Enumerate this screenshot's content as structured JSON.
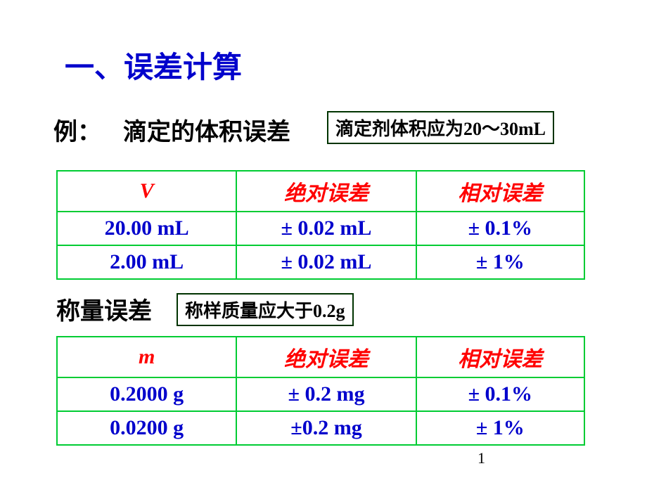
{
  "title": "一、误差计算",
  "example_label": "例：",
  "example_text": "滴定的体积误差",
  "note1": "滴定剂体积应为20～30mL",
  "table1": {
    "headers": {
      "col1": "V",
      "col2": "绝对误差",
      "col3": "相对误差"
    },
    "rows": [
      {
        "v": "20.00 mL",
        "abs": "± 0.02 mL",
        "rel": "± 0.1%"
      },
      {
        "v": "2.00 mL",
        "abs": "± 0.02 mL",
        "rel": "± 1%"
      }
    ]
  },
  "weigh_label": "称量误差",
  "note2": "称样质量应大于0.2g",
  "table2": {
    "headers": {
      "col1": "m",
      "col2": "绝对误差",
      "col3": "相对误差"
    },
    "rows": [
      {
        "v": "0.2000 g",
        "abs": "± 0.2 mg",
        "rel": "± 0.1%"
      },
      {
        "v": "0.0200 g",
        "abs": "±0.2 mg",
        "rel": "± 1%"
      }
    ]
  },
  "page_num": "1",
  "colors": {
    "title_color": "#0000cc",
    "border_green": "#00cc33",
    "header_red": "#ff0000",
    "value_blue": "#0000cc",
    "note_border": "#003300"
  }
}
